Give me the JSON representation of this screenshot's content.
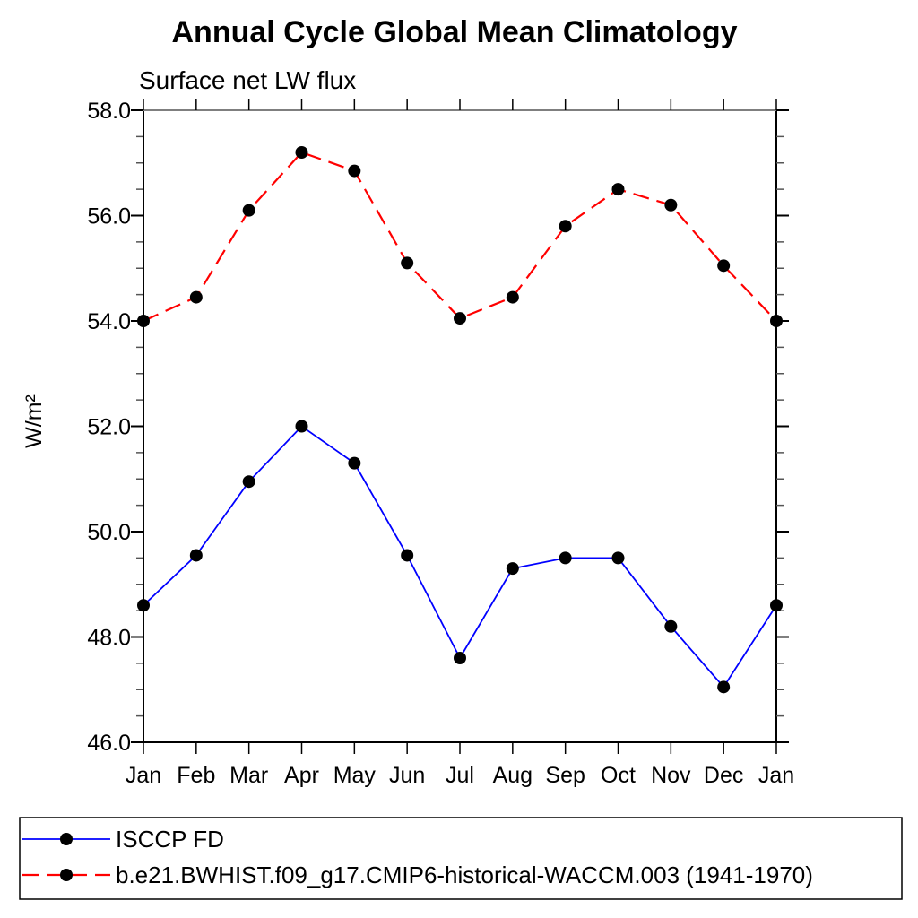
{
  "header": {
    "title": "Annual Cycle Global Mean Climatology",
    "subtitle": "Surface net LW flux"
  },
  "chart_data": {
    "type": "line",
    "title": "Annual Cycle Global Mean Climatology",
    "subtitle": "Surface net LW flux",
    "xlabel": "",
    "ylabel": "W/m²",
    "ylim": [
      46.0,
      58.0
    ],
    "ytick_step": 2.0,
    "yminor_step": 0.5,
    "ytick_labels": [
      "46.0",
      "48.0",
      "50.0",
      "52.0",
      "54.0",
      "56.0",
      "58.0"
    ],
    "categories": [
      "Jan",
      "Feb",
      "Mar",
      "Apr",
      "May",
      "Jun",
      "Jul",
      "Aug",
      "Sep",
      "Oct",
      "Nov",
      "Dec",
      "Jan"
    ],
    "grid": false,
    "legend_position": "bottom-box",
    "series": [
      {
        "name": "ISCCP FD",
        "color": "#0000ff",
        "line_style": "solid",
        "marker": "filled-circle",
        "marker_color": "#000000",
        "values": [
          48.6,
          49.55,
          50.95,
          52.0,
          51.3,
          49.55,
          47.6,
          49.3,
          49.5,
          49.5,
          48.2,
          47.05,
          48.6
        ]
      },
      {
        "name": "b.e21.BWHIST.f09_g17.CMIP6-historical-WACCM.003 (1941-1970)",
        "color": "#ff0000",
        "line_style": "dashed",
        "marker": "filled-circle",
        "marker_color": "#000000",
        "values": [
          54.0,
          54.45,
          56.1,
          57.2,
          56.85,
          55.1,
          54.05,
          54.45,
          55.8,
          56.5,
          56.2,
          55.05,
          54.0
        ]
      }
    ]
  },
  "colors": {
    "background": "#ffffff",
    "axis": "#000000",
    "frame_top": "#7f7f7f",
    "minor_tick": "#555555",
    "text": "#000000",
    "series_blue": "#0000ff",
    "series_red": "#ff0000",
    "marker": "#000000",
    "legend_border": "#000000"
  }
}
